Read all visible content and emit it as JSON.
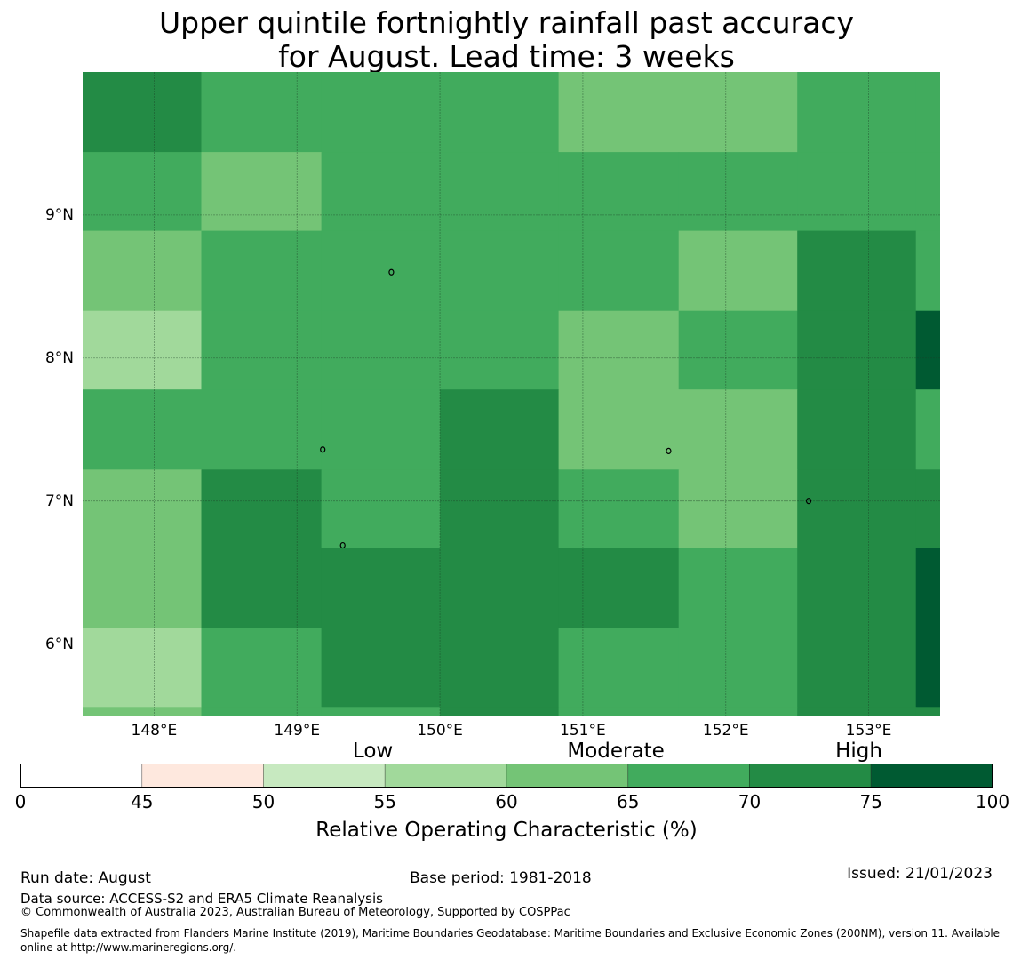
{
  "title": {
    "line1": "Upper quintile fortnightly rainfall past accuracy",
    "line2": "for August. Lead time: 3 weeks"
  },
  "map": {
    "lon_range": [
      147.5,
      153.5
    ],
    "lat_range": [
      5.5,
      10.0
    ],
    "gridlines": true,
    "lat_labels": [
      {
        "value": 9,
        "text": "9°N"
      },
      {
        "value": 8,
        "text": "8°N"
      },
      {
        "value": 7,
        "text": "7°N"
      },
      {
        "value": 6,
        "text": "6°N"
      }
    ],
    "lon_labels": [
      {
        "value": 148,
        "text": "148°E"
      },
      {
        "value": 149,
        "text": "149°E"
      },
      {
        "value": 150,
        "text": "150°E"
      },
      {
        "value": 151,
        "text": "151°E"
      },
      {
        "value": 152,
        "text": "152°E"
      },
      {
        "value": 153,
        "text": "153°E"
      }
    ],
    "cell_columns_lon": [
      147.5,
      148.33,
      149.17,
      150.0,
      150.83,
      151.67,
      152.5,
      153.33,
      153.5
    ],
    "cell_rows_lat": [
      10.0,
      9.44,
      8.89,
      8.33,
      7.78,
      7.22,
      6.67,
      6.11,
      5.56,
      5.5
    ],
    "cell_classes": [
      [
        7,
        6,
        6,
        6,
        5,
        5,
        6,
        6
      ],
      [
        6,
        5,
        6,
        6,
        6,
        6,
        6,
        6
      ],
      [
        5,
        6,
        6,
        6,
        6,
        5,
        7,
        6
      ],
      [
        4,
        6,
        6,
        6,
        5,
        6,
        7,
        8
      ],
      [
        6,
        6,
        6,
        7,
        5,
        5,
        7,
        6
      ],
      [
        5,
        7,
        6,
        7,
        6,
        5,
        7,
        7
      ],
      [
        5,
        7,
        7,
        7,
        7,
        6,
        7,
        8
      ],
      [
        4,
        6,
        7,
        7,
        6,
        6,
        7,
        8
      ],
      [
        5,
        6,
        6,
        7,
        6,
        6,
        7,
        7
      ]
    ],
    "islands": [
      {
        "lon": 149.66,
        "lat": 8.6
      },
      {
        "lon": 149.18,
        "lat": 7.36
      },
      {
        "lon": 149.32,
        "lat": 6.69
      },
      {
        "lon": 151.6,
        "lat": 7.35
      },
      {
        "lon": 152.58,
        "lat": 7.0
      }
    ]
  },
  "colorbar": {
    "bounds": [
      0,
      45,
      50,
      55,
      60,
      65,
      70,
      75,
      100
    ],
    "tick_labels": [
      "0",
      "45",
      "50",
      "55",
      "60",
      "65",
      "70",
      "75",
      "100"
    ],
    "colors": [
      "#ffffff",
      "#fee8de",
      "#c7e9c0",
      "#a1d99b",
      "#74c476",
      "#41ab5d",
      "#238b45",
      "#005a32"
    ],
    "categories": [
      "Low",
      "Moderate",
      "High"
    ],
    "label": "Relative Operating Characteristic (%)"
  },
  "footer": {
    "run_date": "Run date: August",
    "base_period": "Base period: 1981-2018",
    "issued": "Issued: 21/01/2023",
    "data_source": "Data source: ACCESS-S2 and ERA5 Climate Reanalysis",
    "copyright": "© Commonwealth of Australia 2023, Australian Bureau of Meteorology, Supported by COSPPac",
    "shapefile": "Shapefile data extracted from Flanders Marine Institute (2019), Maritime Boundaries Geodatabase: Maritime Boundaries and Exclusive Economic Zones (200NM), version 11. Available online at http://www.marineregions.org/."
  }
}
